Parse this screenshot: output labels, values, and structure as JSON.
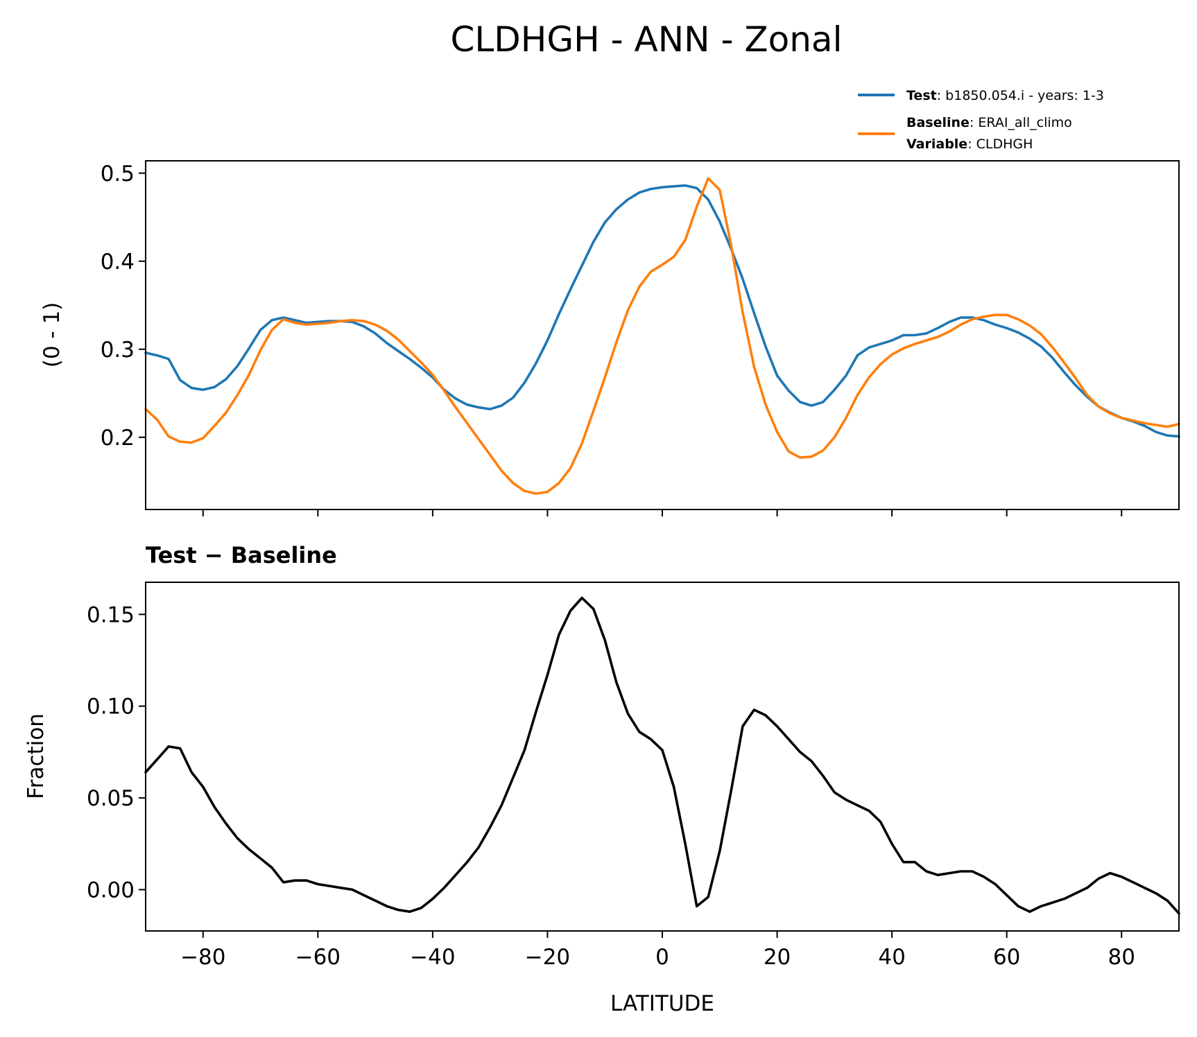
{
  "chart_data": {
    "type": "line",
    "title": "CLDHGH - ANN - Zonal",
    "xlabel": "LATITUDE",
    "xlim": [
      -90,
      90
    ],
    "xticks": [
      -80,
      -60,
      -40,
      -20,
      0,
      20,
      40,
      60,
      80
    ],
    "xtick_labels": [
      "−80",
      "−60",
      "−40",
      "−20",
      "0",
      "20",
      "40",
      "60",
      "80"
    ],
    "legend": {
      "placement": "top-right, above top panel",
      "entries": [
        {
          "key": "Test",
          "sep": ": ",
          "text": "b1850.054.i - years: 1-3"
        },
        {
          "key": "Baseline",
          "sep": ": ",
          "text": "ERAI_all_climo"
        },
        {
          "key": "Variable",
          "sep": ": ",
          "text": "CLDHGH"
        }
      ]
    },
    "x": [
      -90,
      -88,
      -86,
      -84,
      -82,
      -80,
      -78,
      -76,
      -74,
      -72,
      -70,
      -68,
      -66,
      -64,
      -62,
      -60,
      -58,
      -56,
      -54,
      -52,
      -50,
      -48,
      -46,
      -44,
      -42,
      -40,
      -38,
      -36,
      -34,
      -32,
      -30,
      -28,
      -26,
      -24,
      -22,
      -20,
      -18,
      -16,
      -14,
      -12,
      -10,
      -8,
      -6,
      -4,
      -2,
      0,
      2,
      4,
      6,
      8,
      10,
      12,
      14,
      16,
      18,
      20,
      22,
      24,
      26,
      28,
      30,
      32,
      34,
      36,
      38,
      40,
      42,
      44,
      46,
      48,
      50,
      52,
      54,
      56,
      58,
      60,
      62,
      64,
      66,
      68,
      70,
      72,
      74,
      76,
      78,
      80,
      82,
      84,
      86,
      88,
      90
    ],
    "panels": [
      {
        "name": "top",
        "ylabel": "(0 - 1)",
        "ylim": [
          0.118,
          0.514
        ],
        "yticks": [
          0.2,
          0.3,
          0.4,
          0.5
        ],
        "ytick_labels": [
          "0.2",
          "0.3",
          "0.4",
          "0.5"
        ],
        "series": [
          {
            "name": "Test",
            "color": "#1f77b4",
            "values": [
              0.296,
              0.293,
              0.289,
              0.265,
              0.256,
              0.254,
              0.257,
              0.266,
              0.281,
              0.301,
              0.322,
              0.333,
              0.336,
              0.333,
              0.33,
              0.331,
              0.332,
              0.332,
              0.331,
              0.326,
              0.318,
              0.307,
              0.298,
              0.289,
              0.279,
              0.268,
              0.254,
              0.244,
              0.237,
              0.234,
              0.232,
              0.236,
              0.245,
              0.262,
              0.284,
              0.31,
              0.34,
              0.368,
              0.395,
              0.422,
              0.444,
              0.459,
              0.47,
              0.478,
              0.482,
              0.484,
              0.485,
              0.486,
              0.483,
              0.47,
              0.445,
              0.414,
              0.38,
              0.341,
              0.303,
              0.27,
              0.253,
              0.24,
              0.236,
              0.24,
              0.254,
              0.27,
              0.293,
              0.302,
              0.306,
              0.31,
              0.316,
              0.316,
              0.318,
              0.324,
              0.331,
              0.336,
              0.336,
              0.333,
              0.328,
              0.324,
              0.319,
              0.312,
              0.303,
              0.29,
              0.274,
              0.259,
              0.246,
              0.235,
              0.228,
              0.222,
              0.218,
              0.213,
              0.206,
              0.202,
              0.201
            ]
          },
          {
            "name": "Baseline",
            "color": "#ff7f0e",
            "values": [
              0.232,
              0.22,
              0.201,
              0.195,
              0.194,
              0.199,
              0.213,
              0.228,
              0.248,
              0.271,
              0.299,
              0.322,
              0.334,
              0.33,
              0.328,
              0.329,
              0.33,
              0.332,
              0.333,
              0.332,
              0.328,
              0.321,
              0.311,
              0.298,
              0.285,
              0.271,
              0.253,
              0.234,
              0.216,
              0.198,
              0.18,
              0.162,
              0.148,
              0.139,
              0.136,
              0.138,
              0.148,
              0.165,
              0.193,
              0.23,
              0.268,
              0.308,
              0.344,
              0.371,
              0.388,
              0.396,
              0.405,
              0.424,
              0.462,
              0.494,
              0.481,
              0.418,
              0.342,
              0.28,
              0.237,
              0.206,
              0.184,
              0.177,
              0.178,
              0.185,
              0.2,
              0.222,
              0.248,
              0.268,
              0.283,
              0.294,
              0.301,
              0.306,
              0.31,
              0.314,
              0.32,
              0.328,
              0.334,
              0.337,
              0.339,
              0.339,
              0.334,
              0.327,
              0.317,
              0.302,
              0.285,
              0.267,
              0.248,
              0.235,
              0.227,
              0.222,
              0.219,
              0.216,
              0.214,
              0.212,
              0.215
            ]
          }
        ]
      },
      {
        "name": "bottom",
        "title": "Test − Baseline",
        "ylabel": "Fraction",
        "ylim": [
          -0.0225,
          0.1675
        ],
        "yticks": [
          0.0,
          0.05,
          0.1,
          0.15
        ],
        "ytick_labels": [
          "0.00",
          "0.05",
          "0.10",
          "0.15"
        ],
        "series": [
          {
            "name": "Test − Baseline",
            "color": "#000000",
            "values": [
              0.064,
              0.071,
              0.078,
              0.077,
              0.064,
              0.056,
              0.045,
              0.036,
              0.028,
              0.022,
              0.017,
              0.012,
              0.004,
              0.005,
              0.005,
              0.003,
              0.002,
              0.001,
              0.0,
              -0.003,
              -0.006,
              -0.009,
              -0.011,
              -0.012,
              -0.01,
              -0.005,
              0.001,
              0.008,
              0.015,
              0.023,
              0.034,
              0.046,
              0.061,
              0.076,
              0.097,
              0.117,
              0.139,
              0.152,
              0.159,
              0.153,
              0.136,
              0.113,
              0.096,
              0.086,
              0.082,
              0.076,
              0.056,
              0.025,
              -0.009,
              -0.004,
              0.021,
              0.054,
              0.089,
              0.098,
              0.095,
              0.089,
              0.082,
              0.075,
              0.07,
              0.062,
              0.053,
              0.049,
              0.046,
              0.043,
              0.037,
              0.025,
              0.015,
              0.015,
              0.01,
              0.008,
              0.009,
              0.01,
              0.01,
              0.007,
              0.003,
              -0.003,
              -0.009,
              -0.012,
              -0.009,
              -0.007,
              -0.005,
              -0.002,
              0.001,
              0.006,
              0.009,
              0.007,
              0.004,
              0.001,
              -0.002,
              -0.006,
              -0.013
            ]
          }
        ]
      }
    ]
  }
}
